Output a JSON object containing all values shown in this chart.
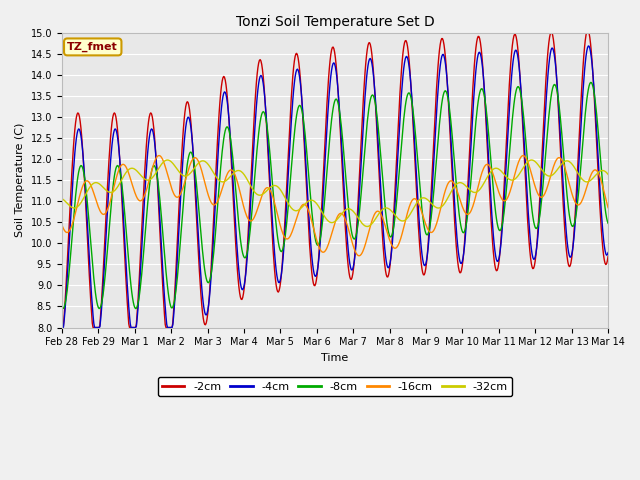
{
  "title": "Tonzi Soil Temperature Set D",
  "xlabel": "Time",
  "ylabel": "Soil Temperature (C)",
  "ylim": [
    8.0,
    15.0
  ],
  "yticks": [
    8.0,
    8.5,
    9.0,
    9.5,
    10.0,
    10.5,
    11.0,
    11.5,
    12.0,
    12.5,
    13.0,
    13.5,
    14.0,
    14.5,
    15.0
  ],
  "xtick_labels": [
    "Feb 28",
    "Feb 29",
    "Mar 1",
    "Mar 2",
    "Mar 3",
    "Mar 4",
    "Mar 5",
    "Mar 6",
    "Mar 7",
    "Mar 8",
    "Mar 9",
    "Mar 10",
    "Mar 11",
    "Mar 12",
    "Mar 13",
    "Mar 14"
  ],
  "colors": {
    "-2cm": "#cc0000",
    "-4cm": "#0000cc",
    "-8cm": "#00aa00",
    "-16cm": "#ff8800",
    "-32cm": "#cccc00"
  },
  "bg_color": "#e8e8e8",
  "title_fontsize": 10,
  "axis_fontsize": 8,
  "tick_fontsize": 7
}
